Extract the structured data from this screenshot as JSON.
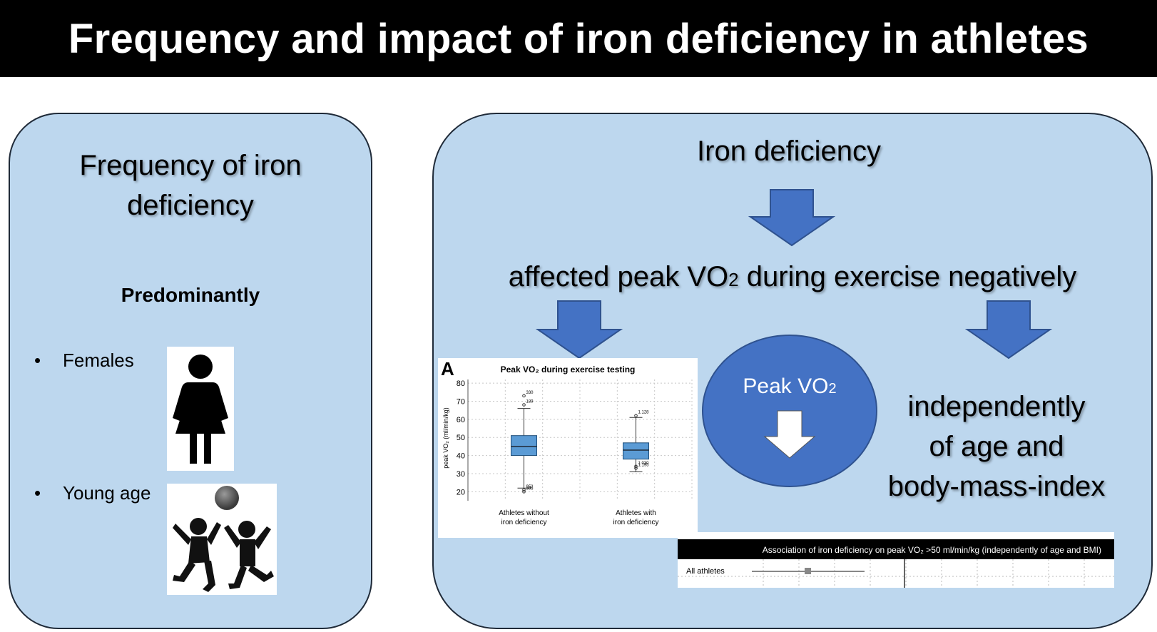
{
  "title": "Frequency and impact of iron deficiency in athletes",
  "left_panel": {
    "heading_line1": "Frequency of iron",
    "heading_line2": "deficiency",
    "subheading": "Predominantly",
    "bullets": [
      "Females",
      "Young age"
    ],
    "bullet_symbol": "•"
  },
  "right_panel": {
    "top_label": "Iron deficiency",
    "effect_label_pre": "affected peak VO",
    "effect_label_sub": "2",
    "effect_label_post": " during exercise negatively",
    "circle_label_pre": "Peak VO",
    "circle_label_sub": "2",
    "independent_line1": "independently",
    "independent_line2": "of age and",
    "independent_line3": "body-mass-index"
  },
  "chart_data": {
    "type": "box",
    "panel_label": "A",
    "title": "Peak VO₂ during exercise testing",
    "ylabel": "peak VO₂ (ml/min/kg)",
    "ylim": [
      15,
      82
    ],
    "yticks": [
      "80",
      "70",
      "60",
      "50",
      "40",
      "30",
      "20"
    ],
    "categories": [
      "Athletes without iron deficiency",
      "Athletes with iron deficiency"
    ],
    "category_lines": [
      [
        "Athletes without",
        "iron deficiency"
      ],
      [
        "Athletes with",
        "iron deficiency"
      ]
    ],
    "series": [
      {
        "name": "Athletes without iron deficiency",
        "min": 22,
        "q1": 40,
        "median": 45,
        "q3": 51,
        "max": 66
      },
      {
        "name": "Athletes with iron deficiency",
        "min": 31,
        "q1": 38,
        "median": 43,
        "q3": 47,
        "max": 61
      }
    ],
    "outliers": [
      {
        "group": 0,
        "value": 73,
        "label": "330"
      },
      {
        "group": 0,
        "value": 68,
        "label": "189"
      },
      {
        "group": 0,
        "value": 21,
        "label": "952"
      },
      {
        "group": 0,
        "value": 20,
        "label": "306"
      },
      {
        "group": 1,
        "value": 62,
        "label": "1.128"
      },
      {
        "group": 1,
        "value": 34,
        "label": "1.030"
      },
      {
        "group": 1,
        "value": 33,
        "label": "1.195"
      }
    ]
  },
  "forest": {
    "title": "Association of iron deficiency on peak VO₂ >50 ml/min/kg (independently of age and BMI)",
    "row_label": "All athletes"
  },
  "colors": {
    "panel_bg": "#bdd7ee",
    "arrow_blue": "#4472c4",
    "box_blue": "#5b9bd5",
    "title_bg": "#000000"
  },
  "icons": [
    "female-person-icon",
    "children-playing-ball-icon",
    "down-arrow-icon"
  ]
}
